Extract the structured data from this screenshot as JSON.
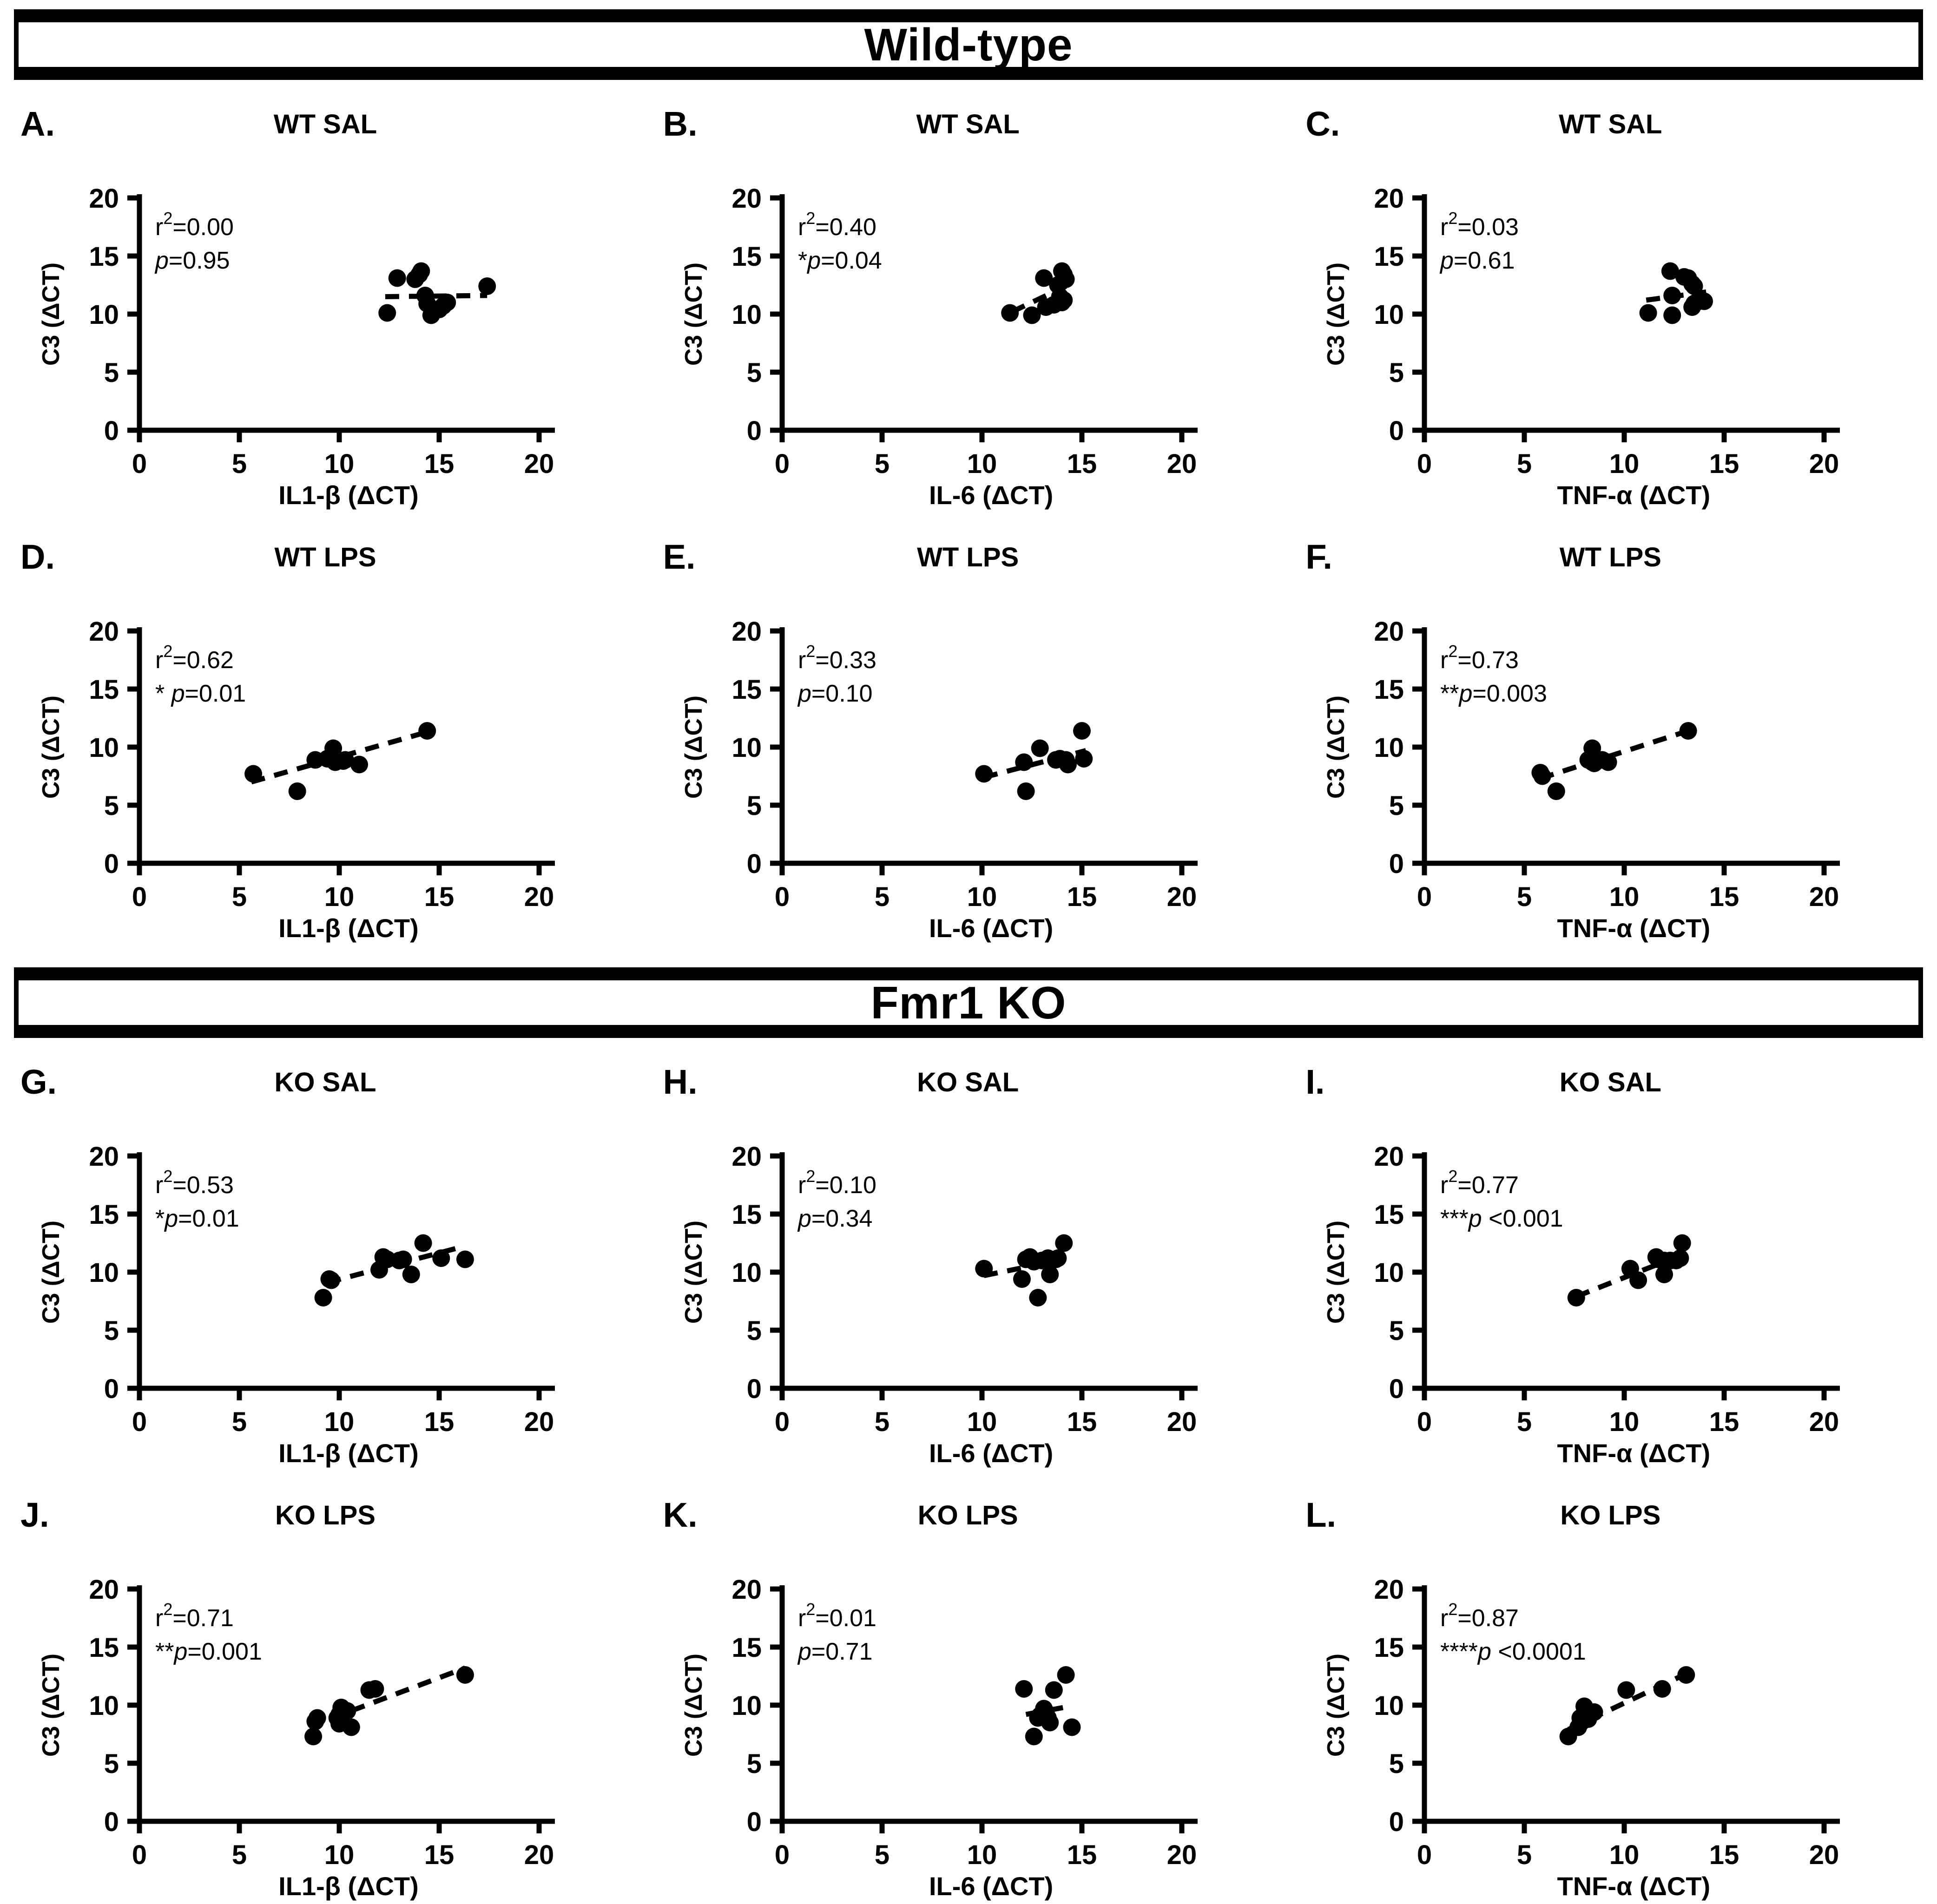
{
  "headers": [
    {
      "label": "Wild-type"
    },
    {
      "label": "Fmr1 KO"
    }
  ],
  "shared": {
    "ylabel": "C3 (ΔCT)"
  },
  "chart_data": [
    {
      "panel": "A.",
      "title": "WT  SAL",
      "type": "scatter",
      "xlabel": "IL1-β (ΔCT)",
      "ylabel": "C3 (ΔCT)",
      "xlim": [
        0,
        20
      ],
      "ylim": [
        0,
        20
      ],
      "xticks": [
        0,
        5,
        10,
        15,
        20
      ],
      "yticks": [
        0,
        5,
        10,
        15,
        20
      ],
      "r2": "0.00",
      "stars": "",
      "p_rest": "=0.95",
      "trend": [
        12.3,
        11.5,
        17.4,
        11.6
      ],
      "points": [
        [
          12.4,
          10.1
        ],
        [
          12.9,
          13.1
        ],
        [
          13.8,
          13.0
        ],
        [
          14.0,
          13.4
        ],
        [
          14.1,
          13.7
        ],
        [
          14.3,
          11.6
        ],
        [
          14.4,
          10.9
        ],
        [
          14.6,
          9.9
        ],
        [
          15.0,
          10.4
        ],
        [
          15.2,
          10.7
        ],
        [
          15.4,
          11.0
        ],
        [
          17.4,
          12.4
        ]
      ]
    },
    {
      "panel": "B.",
      "title": "WT  SAL",
      "type": "scatter",
      "xlabel": "IL-6 (ΔCT)",
      "ylabel": "C3 (ΔCT)",
      "xlim": [
        0,
        20
      ],
      "ylim": [
        0,
        20
      ],
      "xticks": [
        0,
        5,
        10,
        15,
        20
      ],
      "yticks": [
        0,
        5,
        10,
        15,
        20
      ],
      "r2": "0.40",
      "stars": "*",
      "p_rest": "=0.04",
      "trend": [
        11.5,
        10.2,
        14.2,
        12.4
      ],
      "points": [
        [
          11.4,
          10.1
        ],
        [
          12.5,
          9.9
        ],
        [
          13.1,
          13.1
        ],
        [
          13.2,
          10.6
        ],
        [
          13.6,
          10.8
        ],
        [
          13.8,
          12.5
        ],
        [
          13.9,
          11.5
        ],
        [
          14.0,
          13.7
        ],
        [
          14.0,
          11.0
        ],
        [
          14.1,
          13.4
        ],
        [
          14.1,
          11.2
        ],
        [
          14.2,
          13.0
        ]
      ]
    },
    {
      "panel": "C.",
      "title": "WT  SAL",
      "type": "scatter",
      "xlabel": "TNF-α (ΔCT)",
      "ylabel": "C3 (ΔCT)",
      "xlim": [
        0,
        20
      ],
      "ylim": [
        0,
        20
      ],
      "xticks": [
        0,
        5,
        10,
        15,
        20
      ],
      "yticks": [
        0,
        5,
        10,
        15,
        20
      ],
      "r2": "0.03",
      "stars": "",
      "p_rest": "=0.61",
      "trend": [
        11.1,
        11.2,
        14.1,
        11.9
      ],
      "points": [
        [
          11.2,
          10.1
        ],
        [
          12.3,
          13.7
        ],
        [
          12.4,
          9.9
        ],
        [
          12.4,
          11.6
        ],
        [
          13.0,
          13.2
        ],
        [
          13.2,
          13.1
        ],
        [
          13.4,
          12.6
        ],
        [
          13.4,
          10.6
        ],
        [
          13.5,
          12.4
        ],
        [
          13.5,
          10.9
        ],
        [
          13.6,
          11.0
        ],
        [
          14.0,
          11.1
        ]
      ]
    },
    {
      "panel": "D.",
      "title": "WT  LPS",
      "type": "scatter",
      "xlabel": "IL1-β (ΔCT)",
      "ylabel": "C3 (ΔCT)",
      "xlim": [
        0,
        20
      ],
      "ylim": [
        0,
        20
      ],
      "xticks": [
        0,
        5,
        10,
        15,
        20
      ],
      "yticks": [
        0,
        5,
        10,
        15,
        20
      ],
      "r2": "0.62",
      "stars": "* ",
      "p_rest": "=0.01",
      "trend": [
        5.6,
        7.0,
        14.4,
        11.3
      ],
      "points": [
        [
          5.7,
          7.7
        ],
        [
          7.9,
          6.2
        ],
        [
          8.8,
          8.9
        ],
        [
          9.4,
          9.0
        ],
        [
          9.7,
          9.9
        ],
        [
          9.8,
          8.7
        ],
        [
          10.2,
          8.8
        ],
        [
          10.3,
          8.9
        ],
        [
          11.0,
          8.5
        ],
        [
          14.4,
          11.4
        ]
      ]
    },
    {
      "panel": "E.",
      "title": "WT  LPS",
      "type": "scatter",
      "xlabel": "IL-6 (ΔCT)",
      "ylabel": "C3 (ΔCT)",
      "xlim": [
        0,
        20
      ],
      "ylim": [
        0,
        20
      ],
      "xticks": [
        0,
        5,
        10,
        15,
        20
      ],
      "yticks": [
        0,
        5,
        10,
        15,
        20
      ],
      "r2": "0.33",
      "stars": "",
      "p_rest": "=0.10",
      "trend": [
        10.1,
        7.4,
        15.2,
        9.7
      ],
      "points": [
        [
          10.1,
          7.7
        ],
        [
          12.1,
          8.7
        ],
        [
          12.2,
          6.2
        ],
        [
          12.9,
          9.9
        ],
        [
          13.7,
          8.9
        ],
        [
          13.9,
          9.0
        ],
        [
          14.2,
          8.9
        ],
        [
          14.3,
          8.5
        ],
        [
          15.0,
          11.4
        ],
        [
          15.1,
          9.0
        ]
      ]
    },
    {
      "panel": "F.",
      "title": "WT  LPS",
      "type": "scatter",
      "xlabel": "TNF-α (ΔCT)",
      "ylabel": "C3 (ΔCT)",
      "xlim": [
        0,
        20
      ],
      "ylim": [
        0,
        20
      ],
      "xticks": [
        0,
        5,
        10,
        15,
        20
      ],
      "yticks": [
        0,
        5,
        10,
        15,
        20
      ],
      "r2": "0.73",
      "stars": "**",
      "p_rest": "=0.003",
      "trend": [
        5.8,
        7.3,
        13.2,
        11.4
      ],
      "points": [
        [
          5.8,
          7.8
        ],
        [
          5.9,
          7.5
        ],
        [
          6.6,
          6.2
        ],
        [
          8.2,
          8.9
        ],
        [
          8.4,
          9.9
        ],
        [
          8.4,
          8.7
        ],
        [
          8.5,
          8.6
        ],
        [
          8.9,
          8.9
        ],
        [
          9.2,
          8.7
        ],
        [
          13.2,
          11.4
        ]
      ]
    },
    {
      "panel": "G.",
      "title": "KO SAL",
      "type": "scatter",
      "xlabel": "IL1-β (ΔCT)",
      "ylabel": "C3 (ΔCT)",
      "xlim": [
        0,
        20
      ],
      "ylim": [
        0,
        20
      ],
      "xticks": [
        0,
        5,
        10,
        15,
        20
      ],
      "yticks": [
        0,
        5,
        10,
        15,
        20
      ],
      "r2": "0.53",
      "stars": "*",
      "p_rest": "=0.01",
      "trend": [
        9.4,
        9.1,
        16.2,
        12.2
      ],
      "points": [
        [
          9.2,
          7.8
        ],
        [
          9.5,
          9.4
        ],
        [
          9.6,
          9.3
        ],
        [
          12.0,
          10.2
        ],
        [
          12.2,
          11.3
        ],
        [
          12.4,
          11.1
        ],
        [
          13.0,
          11.0
        ],
        [
          13.2,
          11.1
        ],
        [
          13.6,
          9.8
        ],
        [
          14.2,
          12.5
        ],
        [
          15.1,
          11.2
        ],
        [
          16.3,
          11.1
        ]
      ]
    },
    {
      "panel": "H.",
      "title": "KO SAL",
      "type": "scatter",
      "xlabel": "IL-6 (ΔCT)",
      "ylabel": "C3 (ΔCT)",
      "xlim": [
        0,
        20
      ],
      "ylim": [
        0,
        20
      ],
      "xticks": [
        0,
        5,
        10,
        15,
        20
      ],
      "yticks": [
        0,
        5,
        10,
        15,
        20
      ],
      "r2": "0.10",
      "stars": "",
      "p_rest": "=0.34",
      "trend": [
        10.1,
        9.7,
        14.1,
        11.1
      ],
      "points": [
        [
          10.1,
          10.3
        ],
        [
          12.0,
          9.4
        ],
        [
          12.2,
          11.1
        ],
        [
          12.4,
          11.3
        ],
        [
          12.6,
          10.9
        ],
        [
          12.8,
          7.8
        ],
        [
          13.0,
          11.0
        ],
        [
          13.3,
          11.2
        ],
        [
          13.4,
          9.8
        ],
        [
          13.7,
          11.1
        ],
        [
          13.8,
          11.2
        ],
        [
          14.1,
          12.5
        ]
      ]
    },
    {
      "panel": "I.",
      "title": "KO SAL",
      "type": "scatter",
      "xlabel": "TNF-α (ΔCT)",
      "ylabel": "C3 (ΔCT)",
      "xlim": [
        0,
        20
      ],
      "ylim": [
        0,
        20
      ],
      "xticks": [
        0,
        5,
        10,
        15,
        20
      ],
      "yticks": [
        0,
        5,
        10,
        15,
        20
      ],
      "r2": "0.77",
      "stars": "***",
      "p_rest": " <0.001",
      "trend": [
        7.6,
        7.9,
        12.9,
        11.5
      ],
      "points": [
        [
          7.6,
          7.8
        ],
        [
          10.3,
          10.3
        ],
        [
          10.7,
          9.3
        ],
        [
          11.6,
          11.3
        ],
        [
          11.7,
          11.1
        ],
        [
          12.0,
          11.0
        ],
        [
          12.0,
          9.8
        ],
        [
          12.3,
          11.0
        ],
        [
          12.6,
          11.0
        ],
        [
          12.8,
          11.2
        ],
        [
          12.9,
          12.5
        ]
      ]
    },
    {
      "panel": "J.",
      "title": "KO LPS",
      "type": "scatter",
      "xlabel": "IL1-β (ΔCT)",
      "ylabel": "C3 (ΔCT)",
      "xlim": [
        0,
        20
      ],
      "ylim": [
        0,
        20
      ],
      "xticks": [
        0,
        5,
        10,
        15,
        20
      ],
      "yticks": [
        0,
        5,
        10,
        15,
        20
      ],
      "r2": "0.71",
      "stars": "**",
      "p_rest": "=0.001",
      "trend": [
        9.5,
        8.8,
        16.3,
        13.2
      ],
      "points": [
        [
          8.7,
          7.3
        ],
        [
          8.8,
          8.6
        ],
        [
          8.9,
          8.9
        ],
        [
          9.9,
          8.9
        ],
        [
          10.0,
          8.4
        ],
        [
          10.0,
          9.2
        ],
        [
          10.1,
          9.8
        ],
        [
          10.4,
          9.5
        ],
        [
          10.6,
          8.1
        ],
        [
          11.5,
          11.3
        ],
        [
          11.8,
          11.4
        ],
        [
          16.3,
          12.6
        ]
      ]
    },
    {
      "panel": "K.",
      "title": "KO LPS",
      "type": "scatter",
      "xlabel": "IL-6 (ΔCT)",
      "ylabel": "C3 (ΔCT)",
      "xlim": [
        0,
        20
      ],
      "ylim": [
        0,
        20
      ],
      "xticks": [
        0,
        5,
        10,
        15,
        20
      ],
      "yticks": [
        0,
        5,
        10,
        15,
        20
      ],
      "r2": "0.01",
      "stars": "",
      "p_rest": "=0.71",
      "trend": [
        12.2,
        9.2,
        14.4,
        9.9
      ],
      "points": [
        [
          12.1,
          11.4
        ],
        [
          12.6,
          7.3
        ],
        [
          12.8,
          8.9
        ],
        [
          12.9,
          9.1
        ],
        [
          13.1,
          9.7
        ],
        [
          13.2,
          9.4
        ],
        [
          13.3,
          8.9
        ],
        [
          13.4,
          8.5
        ],
        [
          13.6,
          11.3
        ],
        [
          14.2,
          12.6
        ],
        [
          14.5,
          8.1
        ]
      ]
    },
    {
      "panel": "L.",
      "title": "KO LPS",
      "type": "scatter",
      "xlabel": "TNF-α (ΔCT)",
      "ylabel": "C3 (ΔCT)",
      "xlim": [
        0,
        20
      ],
      "ylim": [
        0,
        20
      ],
      "xticks": [
        0,
        5,
        10,
        15,
        20
      ],
      "yticks": [
        0,
        5,
        10,
        15,
        20
      ],
      "r2": "0.87",
      "stars": "****",
      "p_rest": " <0.0001",
      "trend": [
        7.2,
        7.9,
        13.1,
        12.7
      ],
      "points": [
        [
          7.2,
          7.3
        ],
        [
          7.7,
          8.1
        ],
        [
          7.8,
          8.9
        ],
        [
          7.9,
          8.6
        ],
        [
          8.0,
          9.3
        ],
        [
          8.0,
          9.9
        ],
        [
          8.2,
          8.8
        ],
        [
          8.5,
          9.4
        ],
        [
          10.1,
          11.3
        ],
        [
          11.9,
          11.4
        ],
        [
          13.1,
          12.6
        ]
      ]
    }
  ]
}
